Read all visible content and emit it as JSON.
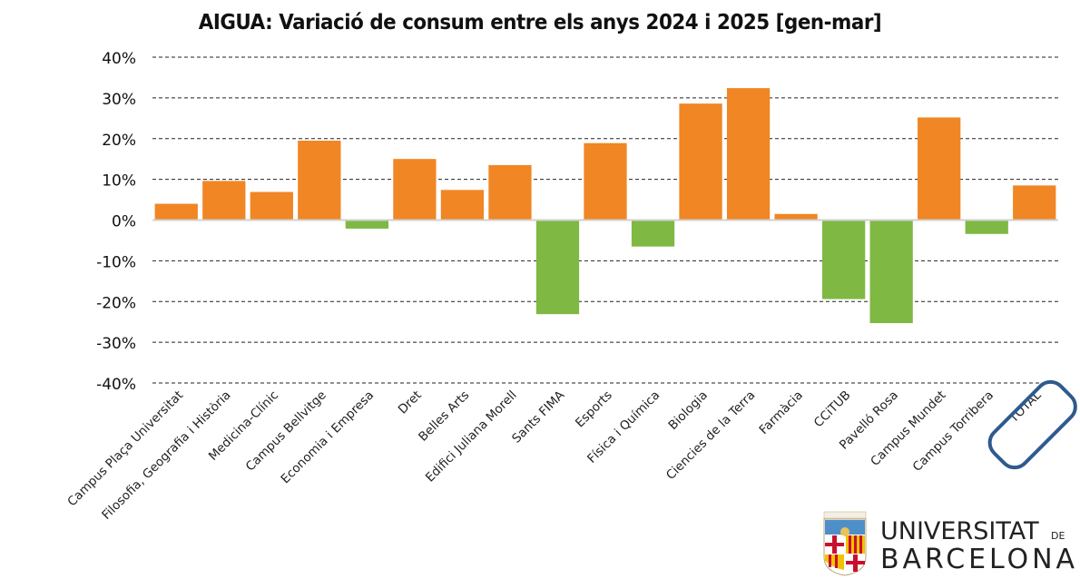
{
  "chart_data": {
    "type": "bar",
    "title": "AIGUA: Variació de consum entre els anys 2024 i 2025 [gen-mar]",
    "xlabel": "",
    "ylabel": "",
    "ylim": [
      -40,
      40
    ],
    "yticks": [
      "40%",
      "30%",
      "20%",
      "10%",
      "0%",
      "-10%",
      "-20%",
      "-30%",
      "-40%"
    ],
    "ytick_values": [
      40,
      30,
      20,
      10,
      0,
      -10,
      -20,
      -30,
      -40
    ],
    "grid": true,
    "categories": [
      "Campus Plaça Universitat",
      "Filosofia, Geografia i Història",
      "Medicina-Clínic",
      "Campus Bellvitge",
      "Economia i Empresa",
      "Dret",
      "Belles Arts",
      "Edifici Juliana Morell",
      "Sants FIMA",
      "Esports",
      "Física i Química",
      "Biologia",
      "Ciencies de la Terra",
      "Farmàcia",
      "CCiTUB",
      "Pavelló Rosa",
      "Campus Mundet",
      "Campus Torribera",
      "TOTAL"
    ],
    "values": [
      4.0,
      9.6,
      6.9,
      19.5,
      -2.1,
      15.0,
      7.4,
      13.5,
      -23.1,
      18.9,
      -6.5,
      28.6,
      32.4,
      1.5,
      -19.4,
      -25.3,
      25.2,
      -3.4,
      8.5
    ],
    "colors": {
      "positive": "#F08624",
      "negative": "#7FB843",
      "highlight": "#2F5A8C"
    },
    "highlighted_category": "TOTAL"
  },
  "logo": {
    "line1": "UNIVERSITAT",
    "line1_suffix": "DE",
    "line2": "BARCELONA"
  }
}
